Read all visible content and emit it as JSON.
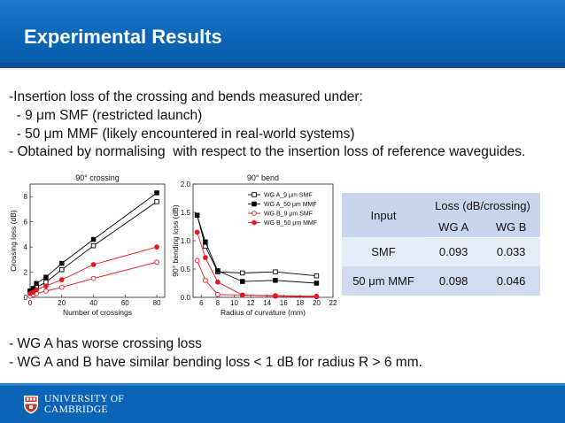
{
  "slide": {
    "title": "Experimental Results",
    "intro": [
      "-Insertion loss of the crossing and bends measured under:",
      "  - 9 μm SMF (restricted launch)",
      "  - 50 μm MMF (likely encountered in real-world systems)",
      "- Obtained by normalising  with respect to the insertion loss of reference waveguides."
    ],
    "conclusions": [
      "- WG A has worse crossing loss",
      "- WG A and B have similar bending loss < 1 dB for radius R > 6 mm."
    ]
  },
  "table": {
    "input_header": "Input",
    "loss_header": "Loss (dB/crossing)",
    "col_a": "WG A",
    "col_b": "WG B",
    "rows": [
      {
        "input": "SMF",
        "a": "0.093",
        "b": "0.033"
      },
      {
        "input": "50 μm MMF",
        "a": "0.098",
        "b": "0.046"
      }
    ]
  },
  "footer": {
    "logo_line1": "UNIVERSITY OF",
    "logo_line2": "CAMBRIDGE"
  },
  "colors": {
    "title_bar": "#0b63b5",
    "wg_a": "#000000",
    "wg_b": "#e8161b"
  },
  "chart_data": [
    {
      "type": "line",
      "title": "90° crossing",
      "xlabel": "Number of crossings",
      "ylabel": "Crossing loss (dB)",
      "xlim": [
        0,
        85
      ],
      "ylim": [
        0,
        9
      ],
      "xticks": [
        0,
        20,
        40,
        60,
        80
      ],
      "yticks": [
        0,
        2,
        4,
        6,
        8
      ],
      "series": [
        {
          "name": "WG A_9 μm SMF",
          "marker": "open-square",
          "color": "#000000",
          "x": [
            0,
            2,
            4,
            10,
            20,
            40,
            80
          ],
          "y": [
            0.5,
            0.6,
            0.8,
            1.2,
            2.2,
            4.1,
            7.6
          ]
        },
        {
          "name": "WG A_50 μm MMF",
          "marker": "filled-square",
          "color": "#000000",
          "x": [
            0,
            2,
            4,
            10,
            20,
            40,
            80
          ],
          "y": [
            0.5,
            0.7,
            1.1,
            1.6,
            2.7,
            4.6,
            8.3
          ]
        },
        {
          "name": "WG B_9 μm SMF",
          "marker": "open-circle",
          "color": "#e8161b",
          "x": [
            0,
            2,
            4,
            10,
            20,
            40,
            80
          ],
          "y": [
            0.1,
            0.2,
            0.3,
            0.5,
            0.8,
            1.5,
            2.8
          ]
        },
        {
          "name": "WG B_50 μm MMF",
          "marker": "filled-circle",
          "color": "#e8161b",
          "x": [
            0,
            2,
            4,
            10,
            20,
            40,
            80
          ],
          "y": [
            0.3,
            0.4,
            0.6,
            0.9,
            1.4,
            2.6,
            4.0
          ]
        }
      ]
    },
    {
      "type": "line",
      "title": "90° bend",
      "xlabel": "Radius of curvature (mm)",
      "ylabel": "90° bending loss (dB)",
      "xlim": [
        5,
        22
      ],
      "ylim": [
        0,
        2.0
      ],
      "xticks": [
        6,
        8,
        10,
        12,
        14,
        16,
        18,
        20,
        22
      ],
      "yticks": [
        0.0,
        0.5,
        1.0,
        1.5,
        2.0
      ],
      "yticklabels": [
        "0.0",
        "0.5",
        "1.0",
        "1.5",
        "2.0"
      ],
      "legend": "top-right",
      "series": [
        {
          "name": "WG A_9 μm SMF",
          "marker": "open-square",
          "color": "#000000",
          "x": [
            5.5,
            6.5,
            8,
            11,
            15,
            20
          ],
          "y": [
            1.45,
            0.9,
            0.45,
            0.43,
            0.45,
            0.38
          ]
        },
        {
          "name": "WG A_50 μm MMF",
          "marker": "filled-square",
          "color": "#000000",
          "x": [
            5.5,
            6.5,
            8,
            11,
            15,
            20
          ],
          "y": [
            1.45,
            0.98,
            0.47,
            0.28,
            0.3,
            0.25
          ]
        },
        {
          "name": "WG B_9 μm SMF",
          "marker": "open-circle",
          "color": "#e8161b",
          "x": [
            5.5,
            6.5,
            8,
            11,
            15,
            20
          ],
          "y": [
            0.65,
            0.3,
            0.05,
            0.04,
            0.03,
            0.02
          ]
        },
        {
          "name": "WG B_50 μm MMF",
          "marker": "filled-circle",
          "color": "#e8161b",
          "x": [
            5.5,
            6.5,
            8,
            11,
            15,
            20
          ],
          "y": [
            1.15,
            0.7,
            0.27,
            0.04,
            0.02,
            0.01
          ]
        }
      ]
    }
  ]
}
